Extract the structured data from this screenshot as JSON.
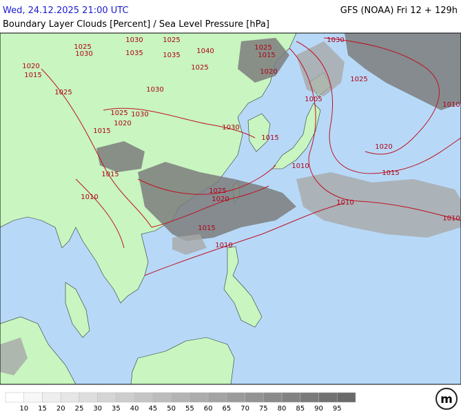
{
  "header": {
    "datetime": "Wed, 24.12.2025 21:00 UTC",
    "model": "GFS (NOAA) Fri 12 + 129h",
    "title": "Boundary Layer Clouds [Percent] / Sea Level Pressure [hPa]"
  },
  "isobar_labels": [
    1030,
    1025,
    1010,
    1020,
    1015,
    1010,
    1005,
    1010,
    1010,
    1025,
    1020,
    1015,
    1010,
    1030,
    1015,
    1015,
    1020,
    1025,
    1030,
    1010,
    1015,
    1025,
    1030,
    1025,
    1030,
    1020,
    1015,
    1030,
    1025,
    1035,
    1035,
    1040,
    1025,
    1025,
    1015,
    1020
  ],
  "colorbar": {
    "ticks": [
      10,
      15,
      20,
      25,
      30,
      35,
      40,
      45,
      50,
      55,
      60,
      65,
      70,
      75,
      80,
      85,
      90,
      95
    ]
  },
  "logo": "m"
}
